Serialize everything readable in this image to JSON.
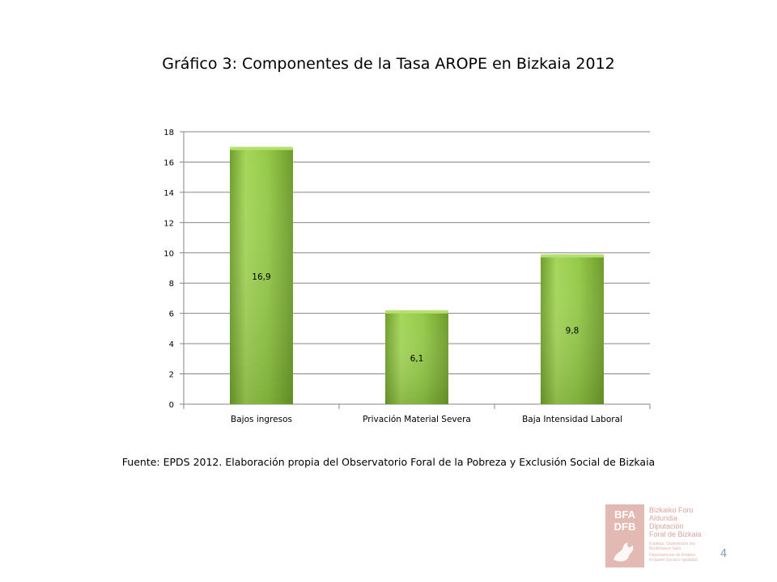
{
  "chart_data": {
    "type": "bar",
    "title": "Gráfico 3: Componentes de la Tasa AROPE en Bizkaia 2012",
    "categories": [
      "Bajos ingresos",
      "Privación Material Severa",
      "Baja Intensidad Laboral"
    ],
    "values": [
      16.9,
      6.1,
      9.8
    ],
    "data_labels": [
      "16,9",
      "6,1",
      "9,8"
    ],
    "ylim": [
      0,
      18
    ],
    "yticks": [
      0,
      2,
      4,
      6,
      8,
      10,
      12,
      14,
      16,
      18
    ],
    "grid": true,
    "legend": "none",
    "bar_color": "#8cc63f"
  },
  "source_note": "Fuente: EPDS 2012. Elaboración propia del Observatorio Foral de la Pobreza y Exclusión Social de Bizkaia",
  "logo": {
    "mark_line1": "BFA",
    "mark_line2": "DFB",
    "line1": "Bizkaiko Foru",
    "line2": "Aldundia",
    "line3": "Diputación",
    "line4": "Foral de Bizkaia",
    "small1": "Enplegu, Gizarteratze eta Berdintasun Saila",
    "small2": "Departamento de Empleo, Inclusión Social e Igualdad"
  },
  "page_number": "4"
}
